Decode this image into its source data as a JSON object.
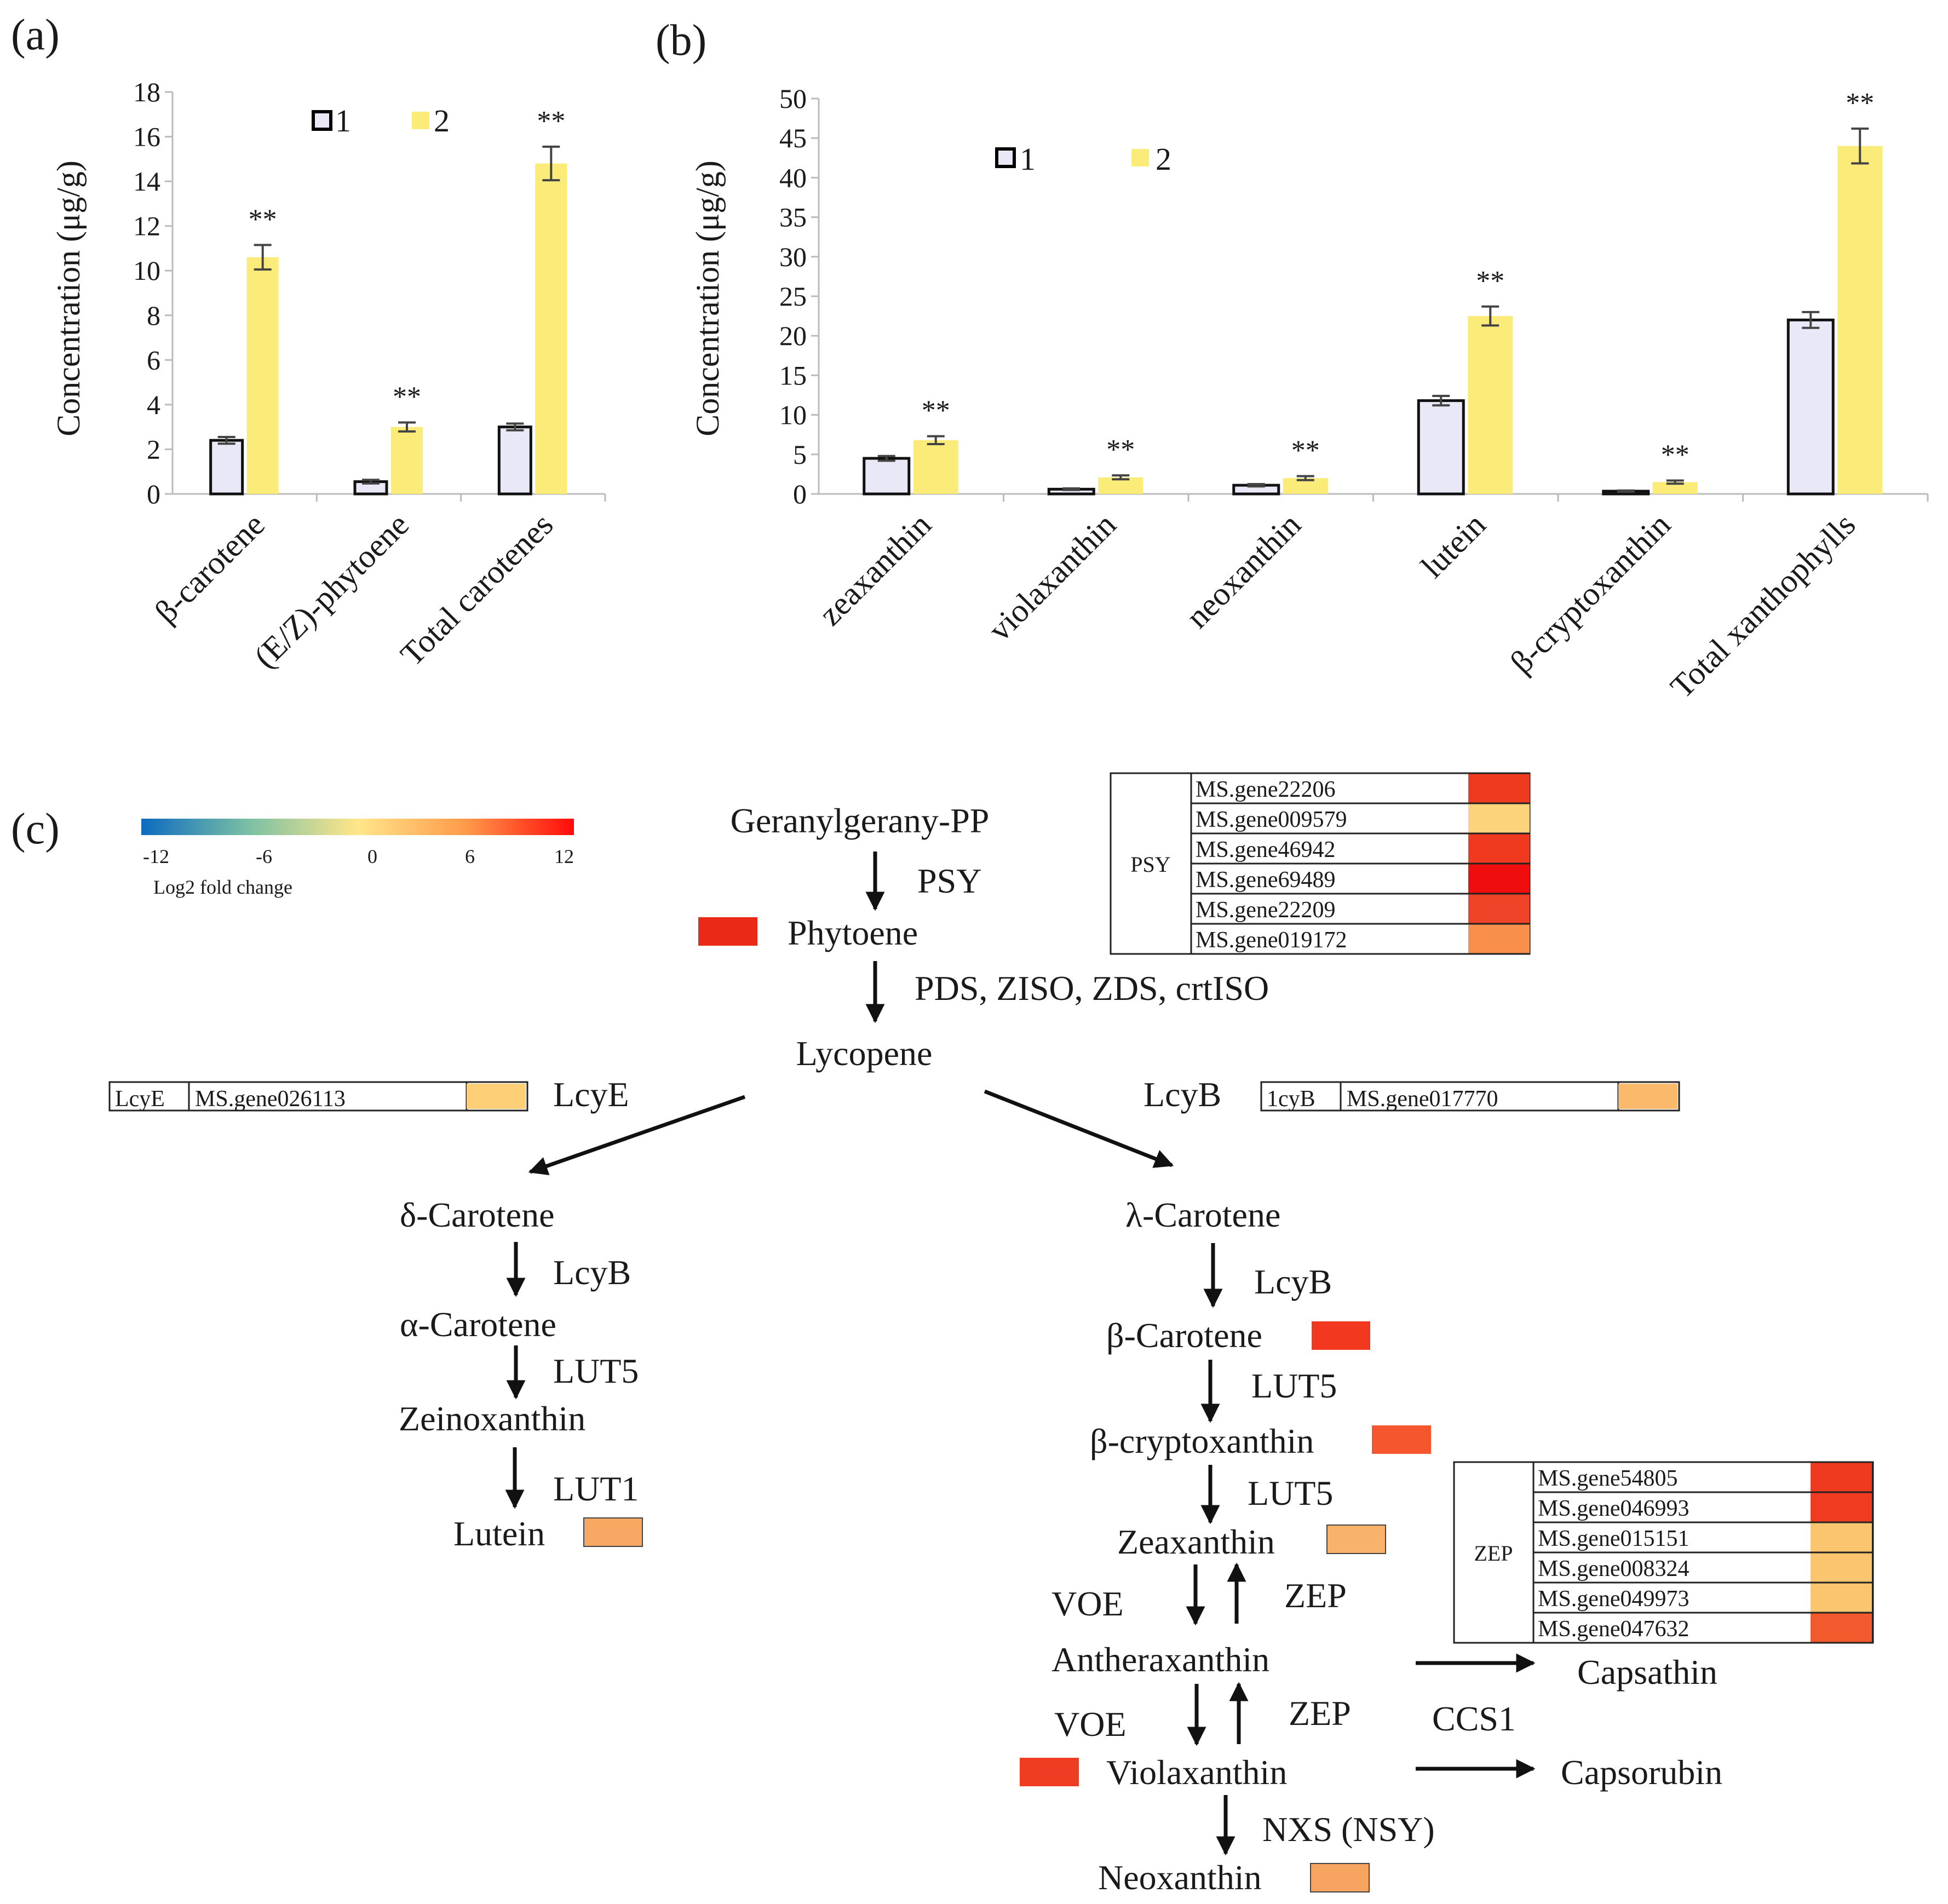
{
  "chart_data": [
    {
      "panel": "(a)",
      "type": "bar",
      "ylabel": "Concentration (μg/g)",
      "ylim": [
        0,
        18
      ],
      "yticks": [
        "0",
        "2",
        "4",
        "6",
        "8",
        "10",
        "12",
        "14",
        "16",
        "18"
      ],
      "legend": [
        "1",
        "2"
      ],
      "categories": [
        "β-carotene",
        "(E/Z)-phytoene",
        "Total carotenes"
      ],
      "series": [
        {
          "name": "1",
          "values": [
            2.4,
            0.55,
            3.0
          ],
          "errors": [
            0.15,
            0.08,
            0.15
          ]
        },
        {
          "name": "2",
          "values": [
            10.6,
            3.0,
            14.8
          ],
          "errors": [
            0.55,
            0.2,
            0.75
          ]
        }
      ],
      "significance": [
        "**",
        "**",
        "**"
      ]
    },
    {
      "panel": "(b)",
      "type": "bar",
      "ylabel": "Concentration (μg/g)",
      "ylim": [
        0,
        50
      ],
      "yticks": [
        "0",
        "5",
        "10",
        "15",
        "20",
        "25",
        "30",
        "35",
        "40",
        "45",
        "50"
      ],
      "legend": [
        "1",
        "2"
      ],
      "categories": [
        "zeaxanthin",
        "violaxanthin",
        "neoxanthin",
        "lutein",
        "β-cryptoxanthin",
        "Total xanthophylls"
      ],
      "series": [
        {
          "name": "1",
          "values": [
            4.5,
            0.6,
            1.1,
            11.8,
            0.35,
            22.0
          ],
          "errors": [
            0.3,
            0.1,
            0.15,
            0.6,
            0.08,
            1.0
          ]
        },
        {
          "name": "2",
          "values": [
            6.8,
            2.1,
            2.0,
            22.5,
            1.5,
            44.0
          ],
          "errors": [
            0.5,
            0.25,
            0.25,
            1.2,
            0.2,
            2.2
          ]
        }
      ],
      "significance": [
        "**",
        "**",
        "**",
        "**",
        "**",
        "**"
      ]
    }
  ],
  "panel_c": {
    "label": "(c)",
    "colorbar": {
      "ticks": [
        "-12",
        "-6",
        "0",
        "6",
        "12"
      ],
      "title": "Log2 fold change",
      "colors": [
        "#0c6bc0",
        "#7cc0a4",
        "#ffe68a",
        "#ff9a4a",
        "#ff0a0a"
      ]
    },
    "nodes": {
      "ggpp": "Geranylgerany-PP",
      "phytoene": "Phytoene",
      "lycopene": "Lycopene",
      "delta_carotene": "δ-Carotene",
      "alpha_carotene": "α-Carotene",
      "zeinoxanthin": "Zeinoxanthin",
      "lutein": "Lutein",
      "lambda_carotene": "λ-Carotene",
      "beta_carotene": "β-Carotene",
      "beta_cryptoxanthin": "β-cryptoxanthin",
      "zeaxanthin": "Zeaxanthin",
      "antheraxanthin": "Antheraxanthin",
      "violaxanthin": "Violaxanthin",
      "neoxanthin": "Neoxanthin",
      "capsathin": "Capsathin",
      "capsorubin": "Capsorubin"
    },
    "enzymes": {
      "psy": "PSY",
      "pds_group": "PDS, ZISO, ZDS, crtISO",
      "lcye": "LcyE",
      "lcyb_right": "LcyB",
      "lcyb_left": "LcyB",
      "lut5_left": "LUT5",
      "lut1": "LUT1",
      "lcyb_right2": "LcyB",
      "lut5_right1": "LUT5",
      "lut5_right2": "LUT5",
      "voe1": "VOE",
      "zep1": "ZEP",
      "voe2": "VOE",
      "zep2": "ZEP",
      "ccs1": "CCS1",
      "nxs": "NXS (NSY)"
    },
    "node_colors": {
      "phytoene": "#ea2a16",
      "lutein": "#f8a862",
      "beta_carotene": "#f2381f",
      "beta_cryptoxanthin": "#f5562e",
      "zeaxanthin": "#f9b26a",
      "violaxanthin": "#ee3d22",
      "neoxanthin": "#f7a460"
    },
    "psy_table": {
      "group": "PSY",
      "genes": [
        {
          "id": "MS.gene22206",
          "color": "#ee3a1e"
        },
        {
          "id": "MS.gene009579",
          "color": "#fcd27b"
        },
        {
          "id": "MS.gene46942",
          "color": "#f03a1f"
        },
        {
          "id": "MS.gene69489",
          "color": "#ef0d0d"
        },
        {
          "id": "MS.gene22209",
          "color": "#ef4328"
        },
        {
          "id": "MS.gene019172",
          "color": "#f8904c"
        }
      ]
    },
    "lcye_table": {
      "group": "LcyE",
      "gene": "MS.gene026113",
      "color": "#fdd078"
    },
    "lcyb_table": {
      "group": "1cyB",
      "gene": "MS.gene017770",
      "color": "#fbb96b"
    },
    "zep_table": {
      "group": "ZEP",
      "genes": [
        {
          "id": "MS.gene54805",
          "color": "#ee3a1e"
        },
        {
          "id": "MS.gene046993",
          "color": "#ef3c21"
        },
        {
          "id": "MS.gene015151",
          "color": "#fbc46f"
        },
        {
          "id": "MS.gene008324",
          "color": "#fbc46f"
        },
        {
          "id": "MS.gene049973",
          "color": "#fbc46f"
        },
        {
          "id": "MS.gene047632",
          "color": "#f25a2e"
        }
      ]
    },
    "bar_colors": {
      "series1": "#e8e8f6",
      "series2": "#fbec7a"
    }
  }
}
